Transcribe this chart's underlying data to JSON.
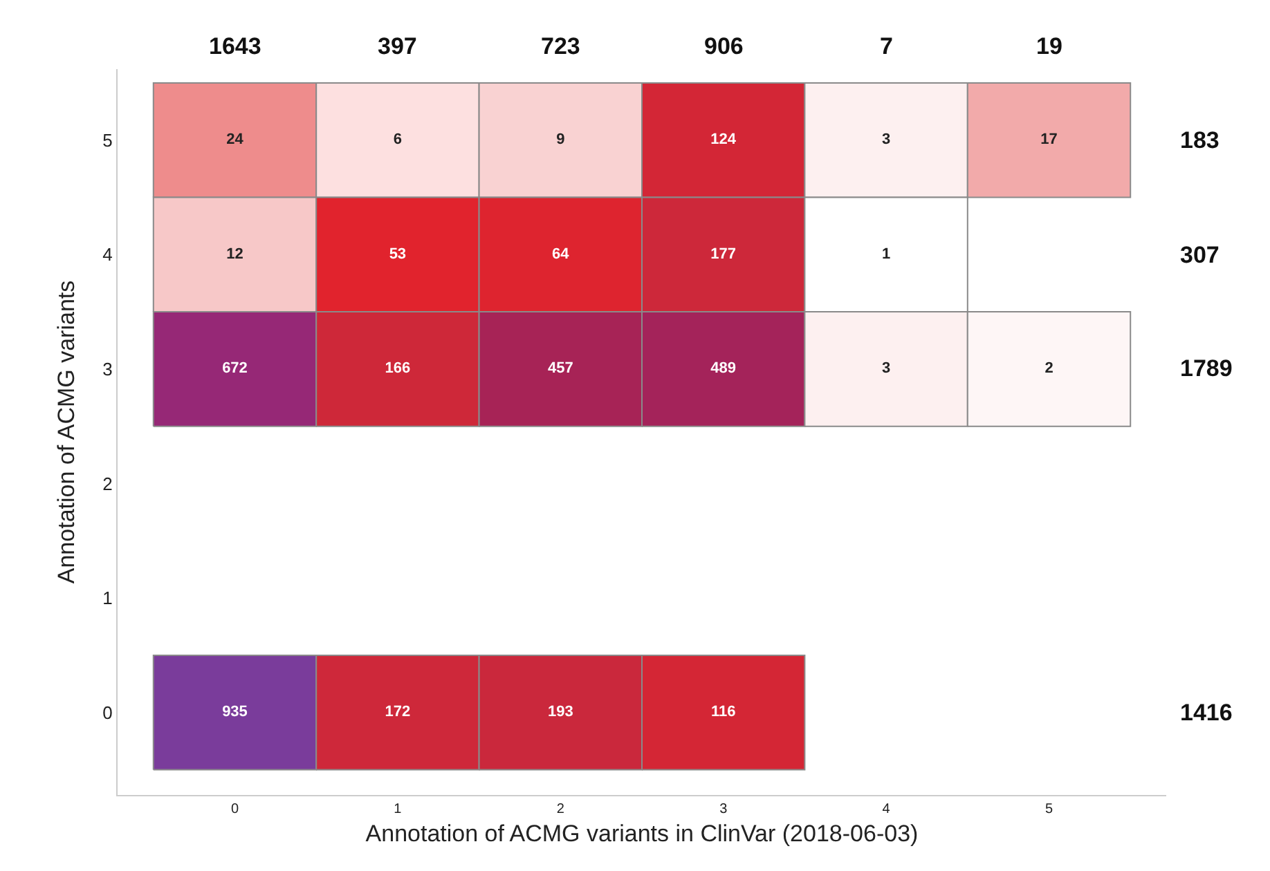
{
  "chart_data": {
    "type": "heatmap",
    "xlabel": "Annotation of ACMG variants in ClinVar (2018-06-03)",
    "ylabel": "Annotation of ACMG variants",
    "categories": [
      "0",
      "1",
      "2",
      "3",
      "4",
      "5"
    ],
    "y_categories": [
      "5",
      "4",
      "3",
      "2",
      "1",
      "0"
    ],
    "y2_categories": [
      "183",
      "307",
      "1789",
      null,
      null,
      "1416"
    ],
    "cells": [
      [
        24,
        6,
        9,
        124,
        3,
        17
      ],
      [
        12,
        53,
        64,
        177,
        1,
        null
      ],
      [
        672,
        166,
        457,
        489,
        3,
        2
      ],
      [
        null,
        null,
        null,
        null,
        null,
        null
      ],
      [
        null,
        null,
        null,
        null,
        null,
        null
      ],
      [
        935,
        172,
        193,
        116,
        null,
        null
      ]
    ],
    "data_labels": true,
    "annotations": [
      "1643",
      "397",
      "723",
      "906",
      "7",
      "19"
    ]
  }
}
